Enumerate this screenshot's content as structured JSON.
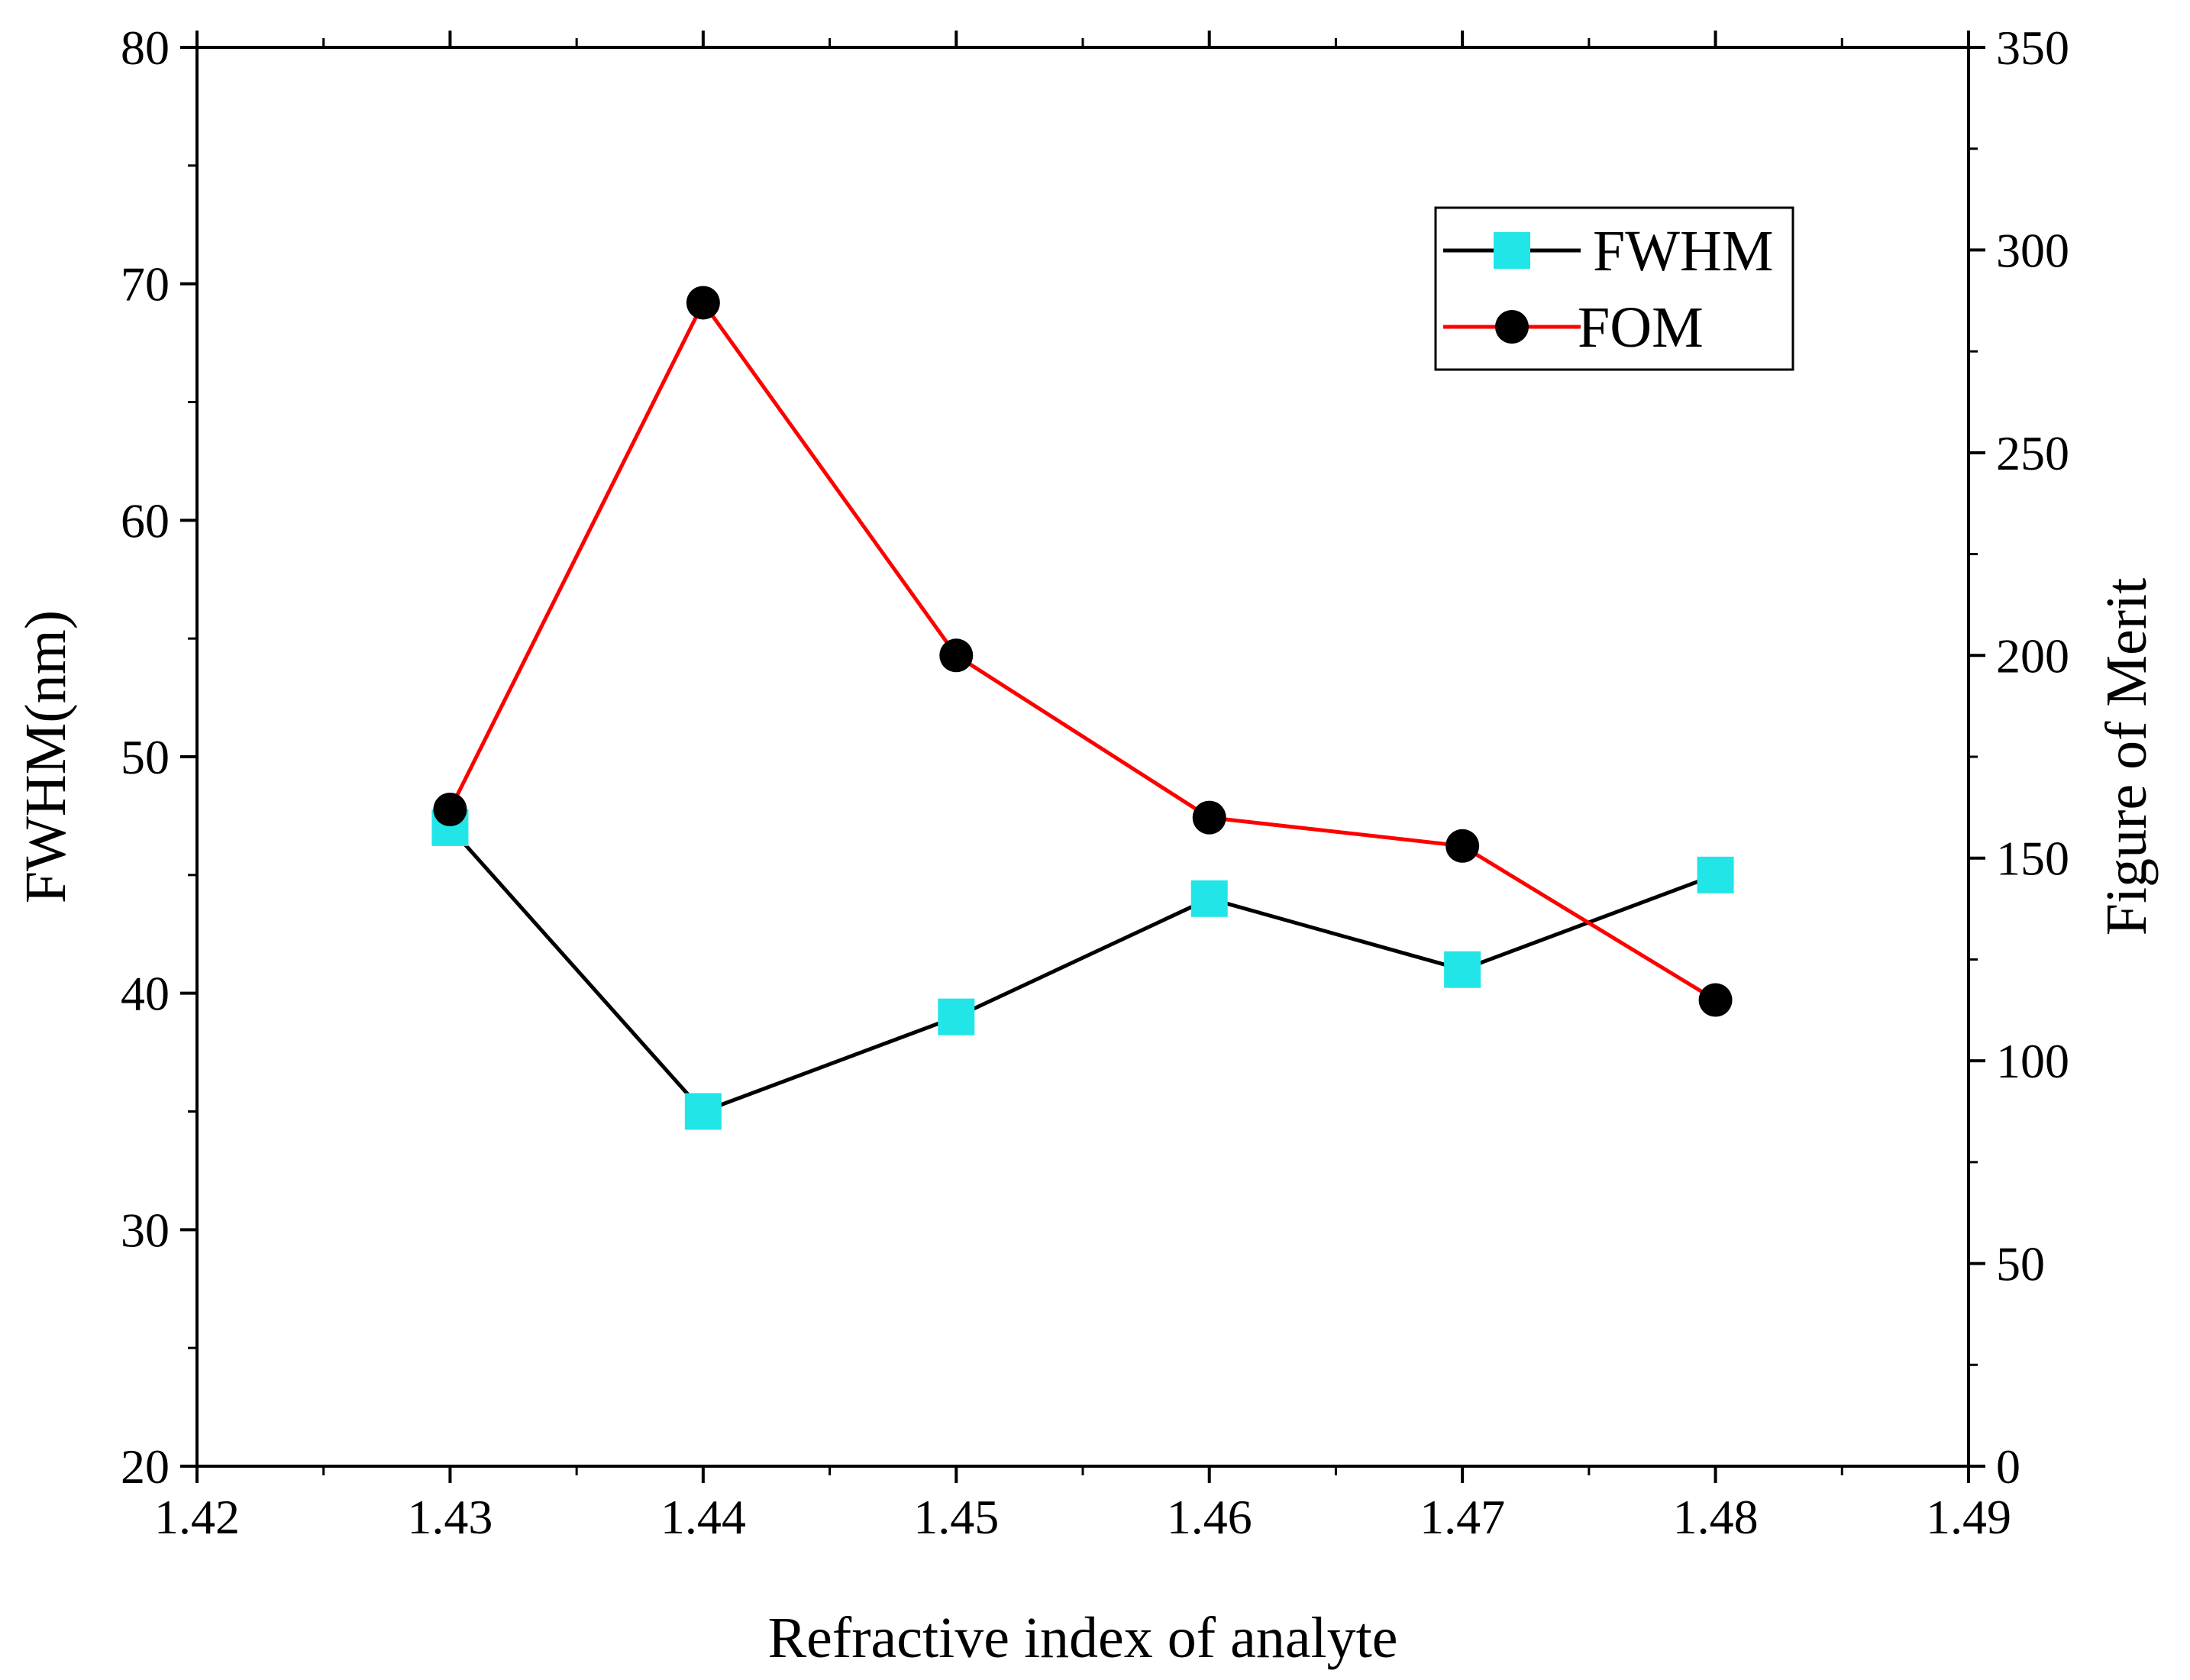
{
  "chart_data": {
    "type": "line",
    "title": "",
    "xlabel": "Refractive index of analyte",
    "ylabel_left": "FWHM(nm)",
    "ylabel_right": "Figure of Merit",
    "xlim": [
      1.42,
      1.49
    ],
    "ylim_left": [
      20,
      80
    ],
    "ylim_right": [
      0,
      350
    ],
    "x_ticks": [
      "1.42",
      "1.43",
      "1.44",
      "1.45",
      "1.46",
      "1.47",
      "1.48",
      "1.49"
    ],
    "y_left_ticks": [
      "20",
      "30",
      "40",
      "50",
      "60",
      "70",
      "80"
    ],
    "y_right_ticks": [
      "0",
      "50",
      "100",
      "150",
      "200",
      "250",
      "300",
      "350"
    ],
    "legend_position": "top-right",
    "series": [
      {
        "name": "FWHM",
        "axis": "left",
        "line_color": "#000000",
        "marker": "square",
        "marker_color": "#22e5e8",
        "x": [
          1.43,
          1.44,
          1.45,
          1.46,
          1.47,
          1.48
        ],
        "values": [
          47,
          35,
          39,
          44,
          41,
          45
        ]
      },
      {
        "name": "FOM",
        "axis": "right",
        "line_color": "#ff0000",
        "marker": "circle",
        "marker_color": "#000000",
        "x": [
          1.43,
          1.44,
          1.45,
          1.46,
          1.47,
          1.48
        ],
        "values": [
          162,
          287,
          200,
          160,
          153,
          115
        ]
      }
    ]
  }
}
